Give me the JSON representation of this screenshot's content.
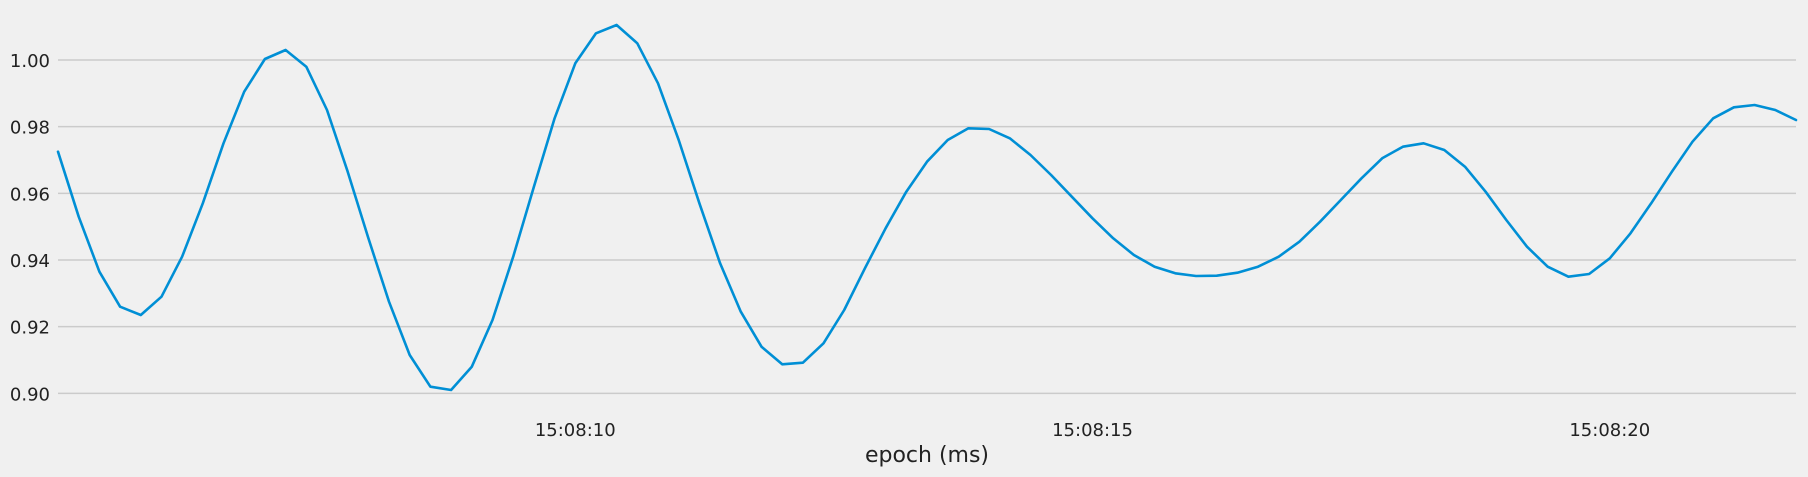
{
  "chart_data": {
    "type": "line",
    "title": "",
    "xlabel": "epoch (ms)",
    "ylabel": "",
    "x_unit": "seconds",
    "xlim": [
      "15:08:05.00",
      "15:08:21.80"
    ],
    "ylim": [
      0.895,
      1.012
    ],
    "y_ticks": [
      0.9,
      0.92,
      0.94,
      0.96,
      0.98,
      1.0
    ],
    "y_tick_labels": [
      "0.90",
      "0.92",
      "0.94",
      "0.96",
      "0.98",
      "1.00"
    ],
    "x_ticks": [
      "15:08:10.00",
      "15:08:15.00",
      "15:08:20.00"
    ],
    "x_tick_labels": [
      "15:08:10",
      "15:08:15",
      "15:08:20"
    ],
    "grid": "horizontal",
    "legend": "none",
    "series": [
      {
        "color": "#008fd5",
        "x": [
          "15:08:05.00",
          "15:08:05.20",
          "15:08:05.40",
          "15:08:05.60",
          "15:08:05.80",
          "15:08:06.00",
          "15:08:06.20",
          "15:08:06.40",
          "15:08:06.60",
          "15:08:06.80",
          "15:08:07.00",
          "15:08:07.20",
          "15:08:07.40",
          "15:08:07.60",
          "15:08:07.80",
          "15:08:08.00",
          "15:08:08.20",
          "15:08:08.40",
          "15:08:08.60",
          "15:08:08.80",
          "15:08:09.00",
          "15:08:09.20",
          "15:08:09.40",
          "15:08:09.60",
          "15:08:09.80",
          "15:08:10.00",
          "15:08:10.20",
          "15:08:10.40",
          "15:08:10.60",
          "15:08:10.80",
          "15:08:11.00",
          "15:08:11.20",
          "15:08:11.40",
          "15:08:11.60",
          "15:08:11.80",
          "15:08:12.00",
          "15:08:12.20",
          "15:08:12.40",
          "15:08:12.60",
          "15:08:12.80",
          "15:08:13.00",
          "15:08:13.20",
          "15:08:13.40",
          "15:08:13.60",
          "15:08:13.80",
          "15:08:14.00",
          "15:08:14.20",
          "15:08:14.40",
          "15:08:14.60",
          "15:08:14.80",
          "15:08:15.00",
          "15:08:15.20",
          "15:08:15.40",
          "15:08:15.60",
          "15:08:15.80",
          "15:08:16.00",
          "15:08:16.20",
          "15:08:16.40",
          "15:08:16.60",
          "15:08:16.80",
          "15:08:17.00",
          "15:08:17.20",
          "15:08:17.40",
          "15:08:17.60",
          "15:08:17.80",
          "15:08:18.00",
          "15:08:18.20",
          "15:08:18.40",
          "15:08:18.60",
          "15:08:18.80",
          "15:08:19.00",
          "15:08:19.20",
          "15:08:19.40",
          "15:08:19.60",
          "15:08:19.80",
          "15:08:20.00",
          "15:08:20.20",
          "15:08:20.40",
          "15:08:20.60",
          "15:08:20.80",
          "15:08:21.00",
          "15:08:21.20",
          "15:08:21.40",
          "15:08:21.60",
          "15:08:21.80"
        ],
        "values": [
          0.9725,
          0.953,
          0.9365,
          0.926,
          0.9235,
          0.929,
          0.941,
          0.957,
          0.975,
          0.9905,
          1.0003,
          1.003,
          0.998,
          0.985,
          0.9665,
          0.9465,
          0.9275,
          0.9115,
          0.902,
          0.901,
          0.908,
          0.922,
          0.941,
          0.962,
          0.9825,
          0.999,
          1.008,
          1.0105,
          1.005,
          0.993,
          0.976,
          0.957,
          0.939,
          0.9245,
          0.914,
          0.9087,
          0.9092,
          0.915,
          0.925,
          0.9375,
          0.9495,
          0.9605,
          0.9695,
          0.976,
          0.9795,
          0.9793,
          0.9765,
          0.9715,
          0.9655,
          0.959,
          0.9525,
          0.9465,
          0.9415,
          0.938,
          0.936,
          0.9352,
          0.9353,
          0.9362,
          0.938,
          0.941,
          0.9455,
          0.9515,
          0.958,
          0.9645,
          0.9705,
          0.974,
          0.975,
          0.973,
          0.968,
          0.9605,
          0.952,
          0.944,
          0.938,
          0.935,
          0.9358,
          0.9405,
          0.948,
          0.957,
          0.9665,
          0.9755,
          0.9825,
          0.9858,
          0.9865,
          0.985,
          0.982
        ]
      }
    ]
  }
}
